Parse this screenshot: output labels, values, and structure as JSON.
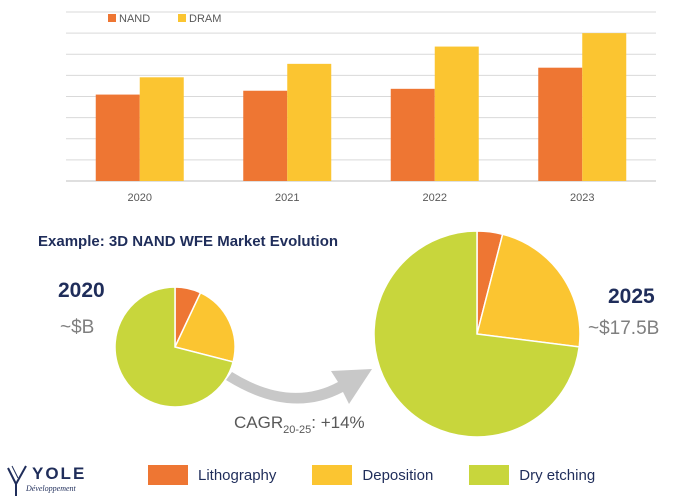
{
  "colors": {
    "nand": "#ee7633",
    "dram": "#fbc531",
    "lithography": "#ee7633",
    "deposition": "#fbc531",
    "dry_etching": "#c8d63c",
    "grid": "#d9d9d9",
    "navy": "#1f2d5a",
    "arrow": "#c8c8c8"
  },
  "chart_data": [
    {
      "type": "bar",
      "title": "",
      "categories": [
        "2020",
        "2021",
        "2022",
        "2023"
      ],
      "series": [
        {
          "name": "NAND",
          "values": [
            45,
            47,
            48,
            59
          ]
        },
        {
          "name": "DRAM",
          "values": [
            54,
            61,
            70,
            77
          ]
        }
      ],
      "ylim": [
        0,
        88
      ],
      "grid": true,
      "legend": "top-left"
    },
    {
      "type": "pie",
      "title": "2020",
      "value_label": "~$B",
      "slices": [
        {
          "name": "Lithography",
          "value": 7
        },
        {
          "name": "Deposition",
          "value": 22
        },
        {
          "name": "Dry etching",
          "value": 71
        }
      ]
    },
    {
      "type": "pie",
      "title": "2025",
      "value_label": "~$17.5B",
      "slices": [
        {
          "name": "Lithography",
          "value": 4
        },
        {
          "name": "Deposition",
          "value": 23
        },
        {
          "name": "Dry etching",
          "value": 73
        }
      ]
    }
  ],
  "headline": "Example: 3D NAND WFE Market Evolution",
  "cagr": {
    "prefix": "CAGR",
    "subscript": "20-25",
    "suffix": ": +14%"
  },
  "legend": [
    "Lithography",
    "Deposition",
    "Dry etching"
  ],
  "logo": {
    "name": "YOLE",
    "subtitle": "Développement"
  }
}
